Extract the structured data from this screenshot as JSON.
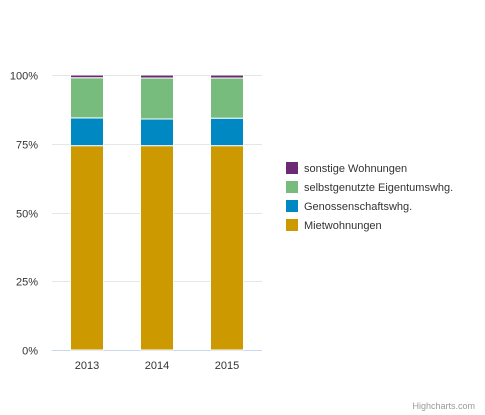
{
  "chart_data": {
    "type": "bar",
    "stacking": "percent",
    "categories": [
      "2013",
      "2014",
      "2015"
    ],
    "series": [
      {
        "name": "Mietwohnungen",
        "color": "#cc9900",
        "values": [
          74.3,
          74.3,
          74.3
        ]
      },
      {
        "name": "Genossenschaftswhg.",
        "color": "#0088c2",
        "values": [
          10.1,
          9.7,
          10.0
        ]
      },
      {
        "name": "selbstgenutzte Eigentumswhg.",
        "color": "#77bb7d",
        "values": [
          14.6,
          14.9,
          14.6
        ]
      },
      {
        "name": "sonstige Wohnungen",
        "color": "#6b2a73",
        "values": [
          1.0,
          1.1,
          1.1
        ]
      }
    ],
    "y_ticks": [
      "0%",
      "25%",
      "50%",
      "75%",
      "100%"
    ],
    "ylim": [
      0,
      100
    ],
    "legend_order": [
      "sonstige Wohnungen",
      "selbstgenutzte Eigentumswhg.",
      "Genossenschaftswhg.",
      "Mietwohnungen"
    ],
    "legend_position": "right",
    "grid": true
  },
  "credits": "Highcharts.com"
}
